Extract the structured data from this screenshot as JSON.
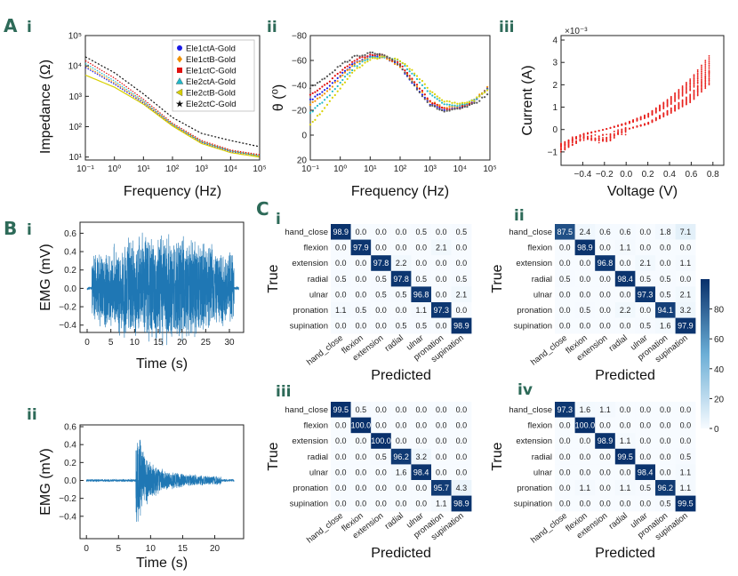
{
  "colors": {
    "panel_label": "#2d6a58",
    "emg_trace": "#1f77b4",
    "iv_trace": "#e8231f",
    "cmap_low": "#f7fbff",
    "cmap_high": "#08306b"
  },
  "panels": {
    "A": "A",
    "B": "B",
    "C": "C",
    "Ai": "i",
    "Aii": "ii",
    "Aiii": "iii",
    "Bi": "i",
    "Bii": "ii",
    "Ci": "i",
    "Cii": "ii",
    "Ciii": "iii",
    "Civ": "iv"
  },
  "chart_data": [
    {
      "id": "impedance",
      "type": "line",
      "xlabel": "Frequency (Hz)",
      "ylabel": "Impedance (Ω)",
      "xscale": "log",
      "yscale": "log",
      "xlim": [
        0.1,
        100000
      ],
      "ylim": [
        8,
        100000
      ],
      "xticks": [
        "10⁻¹",
        "10⁰",
        "10¹",
        "10²",
        "10³",
        "10⁴",
        "10⁵"
      ],
      "yticks": [
        "10¹",
        "10²",
        "10³",
        "10⁴",
        "10⁵"
      ],
      "legend": "top-right",
      "x": [
        0.1,
        1,
        10,
        100,
        1000,
        10000,
        100000
      ],
      "series": [
        {
          "name": "Ele1ctA-Gold",
          "color": "#1a1ae6",
          "marker": "circle",
          "values": [
            9000,
            2500,
            600,
            110,
            30,
            15,
            11
          ]
        },
        {
          "name": "Ele1ctB-Gold",
          "color": "#f09000",
          "marker": "diamond",
          "values": [
            10000,
            2800,
            650,
            115,
            32,
            16,
            11
          ]
        },
        {
          "name": "Ele1ctC-Gold",
          "color": "#e01010",
          "marker": "square",
          "values": [
            15000,
            4000,
            800,
            130,
            35,
            17,
            12
          ]
        },
        {
          "name": "Ele2ctA-Gold",
          "color": "#20b8c8",
          "marker": "triangle-up",
          "values": [
            12000,
            3200,
            700,
            120,
            32,
            16,
            11
          ]
        },
        {
          "name": "Ele2ctB-Gold",
          "color": "#d8d000",
          "marker": "triangle-left",
          "values": [
            5000,
            2000,
            550,
            105,
            28,
            14,
            10
          ]
        },
        {
          "name": "Ele2ctC-Gold",
          "color": "#111111",
          "marker": "star",
          "values": [
            20000,
            6000,
            1200,
            200,
            60,
            35,
            22
          ]
        }
      ]
    },
    {
      "id": "phase",
      "type": "line",
      "xlabel": "Frequency (Hz)",
      "ylabel": "θ (⁰)",
      "xscale": "log",
      "xlim": [
        0.1,
        100000
      ],
      "ylim": [
        20,
        -80
      ],
      "xticks": [
        "10⁻¹",
        "10⁰",
        "10¹",
        "10²",
        "10³",
        "10⁴",
        "10⁵"
      ],
      "yticks": [
        "−80",
        "−60",
        "−40",
        "−20",
        "0",
        "20"
      ],
      "x": [
        0.1,
        0.3,
        1,
        3,
        10,
        30,
        100,
        300,
        1000,
        3000,
        10000,
        30000,
        100000
      ],
      "series": [
        {
          "name": "Ele1ctA-Gold",
          "color": "#1a1ae6",
          "values": [
            -28,
            -36,
            -48,
            -58,
            -64,
            -63,
            -55,
            -40,
            -25,
            -20,
            -22,
            -27,
            -40
          ]
        },
        {
          "name": "Ele1ctB-Gold",
          "color": "#f09000",
          "values": [
            -25,
            -33,
            -46,
            -57,
            -63,
            -62,
            -55,
            -42,
            -27,
            -22,
            -23,
            -28,
            -40
          ]
        },
        {
          "name": "Ele1ctC-Gold",
          "color": "#e01010",
          "values": [
            -33,
            -40,
            -51,
            -60,
            -65,
            -64,
            -57,
            -43,
            -27,
            -21,
            -22,
            -27,
            -38
          ]
        },
        {
          "name": "Ele2ctA-Gold",
          "color": "#20b8c8",
          "values": [
            -18,
            -28,
            -42,
            -55,
            -62,
            -63,
            -59,
            -48,
            -33,
            -25,
            -24,
            -28,
            -39
          ]
        },
        {
          "name": "Ele2ctB-Gold",
          "color": "#d8d000",
          "values": [
            -8,
            -22,
            -38,
            -52,
            -61,
            -63,
            -60,
            -50,
            -36,
            -27,
            -25,
            -28,
            -38
          ]
        },
        {
          "name": "Ele2ctC-Gold",
          "color": "#555555",
          "values": [
            -38,
            -46,
            -56,
            -63,
            -66,
            -64,
            -56,
            -40,
            -24,
            -19,
            -21,
            -25,
            -34
          ]
        }
      ]
    },
    {
      "id": "iv",
      "type": "scatter",
      "xlabel": "Voltage (V)",
      "ylabel": "Current (A)",
      "multiplier": "×10⁻³",
      "xlim": [
        -0.6,
        0.9
      ],
      "ylim": [
        -1.6,
        4.2
      ],
      "xticks": [
        "−0.4",
        "−0.2",
        "0.0",
        "0.2",
        "0.4",
        "0.6",
        "0.8"
      ],
      "yticks": [
        "−1",
        "0",
        "1",
        "2",
        "3",
        "4"
      ],
      "sweeps": 10,
      "upper_branch": [
        [
          -0.6,
          -0.8
        ],
        [
          -0.4,
          -0.25
        ],
        [
          -0.2,
          0.0
        ],
        [
          0.0,
          0.3
        ],
        [
          0.2,
          0.7
        ],
        [
          0.4,
          1.4
        ],
        [
          0.6,
          2.3
        ],
        [
          0.8,
          3.5
        ]
      ],
      "lower_branch": [
        [
          -0.6,
          -1.0
        ],
        [
          -0.4,
          -0.4
        ],
        [
          -0.2,
          -0.5
        ],
        [
          0.0,
          0.0
        ],
        [
          0.2,
          0.3
        ],
        [
          0.4,
          0.9
        ],
        [
          0.6,
          1.6
        ],
        [
          0.8,
          2.8
        ]
      ]
    },
    {
      "id": "emg1",
      "type": "line",
      "xlabel": "Time (s)",
      "ylabel": "EMG (mV)",
      "xlim": [
        -1.5,
        33
      ],
      "ylim": [
        -0.48,
        0.72
      ],
      "xticks": [
        "0",
        "5",
        "10",
        "15",
        "20",
        "25",
        "30"
      ],
      "yticks": [
        "−0.4",
        "−0.2",
        "0.0",
        "0.2",
        "0.4",
        "0.6"
      ],
      "duration": 32,
      "active_start": 1,
      "active_end": 31,
      "peak_amplitude": 0.7
    },
    {
      "id": "emg2",
      "type": "line",
      "xlabel": "Time (s)",
      "ylabel": "EMG (mV)",
      "xlim": [
        -1,
        24.5
      ],
      "ylim": [
        -0.65,
        0.62
      ],
      "xticks": [
        "0",
        "5",
        "10",
        "15",
        "20"
      ],
      "yticks": [
        "−0.4",
        "−0.2",
        "0.0",
        "0.2",
        "0.4",
        "0.6"
      ],
      "duration": 23,
      "burst_start": 7.7,
      "burst_end": 21,
      "peak_amplitude": 0.56
    },
    {
      "id": "confusion",
      "type": "heatmap",
      "xlabel": "Predicted",
      "ylabel": "True",
      "classes": [
        "hand_close",
        "flexion",
        "extension",
        "radial",
        "ulnar",
        "pronation",
        "supination"
      ],
      "colorbar": {
        "min": 0,
        "max": 100,
        "ticks": [
          "0",
          "20",
          "40",
          "60",
          "80"
        ]
      },
      "matrices": [
        [
          [
            98.9,
            0.0,
            0.0,
            0.0,
            0.5,
            0.0,
            0.5
          ],
          [
            0.0,
            97.9,
            0.0,
            0.0,
            0.0,
            2.1,
            0.0
          ],
          [
            0.0,
            0.0,
            97.8,
            2.2,
            0.0,
            0.0,
            0.0
          ],
          [
            0.5,
            0.0,
            0.5,
            97.8,
            0.5,
            0.0,
            0.5
          ],
          [
            0.0,
            0.0,
            0.5,
            0.5,
            96.8,
            0.0,
            2.1
          ],
          [
            1.1,
            0.5,
            0.0,
            0.0,
            1.1,
            97.3,
            0.0
          ],
          [
            0.0,
            0.0,
            0.0,
            0.5,
            0.5,
            0.0,
            98.9
          ]
        ],
        [
          [
            87.5,
            2.4,
            0.6,
            0.6,
            0.0,
            1.8,
            7.1
          ],
          [
            0.0,
            98.9,
            0.0,
            1.1,
            0.0,
            0.0,
            0.0
          ],
          [
            0.0,
            0.0,
            96.8,
            0.0,
            2.1,
            0.0,
            1.1
          ],
          [
            0.5,
            0.0,
            0.0,
            98.4,
            0.5,
            0.5,
            0.0
          ],
          [
            0.0,
            0.0,
            0.0,
            0.0,
            97.3,
            0.5,
            2.1
          ],
          [
            0.0,
            0.5,
            0.0,
            2.2,
            0.0,
            94.1,
            3.2
          ],
          [
            0.0,
            0.0,
            0.0,
            0.0,
            0.5,
            1.6,
            97.9
          ]
        ],
        [
          [
            99.5,
            0.5,
            0.0,
            0.0,
            0.0,
            0.0,
            0.0
          ],
          [
            0.0,
            100.0,
            0.0,
            0.0,
            0.0,
            0.0,
            0.0
          ],
          [
            0.0,
            0.0,
            100.0,
            0.0,
            0.0,
            0.0,
            0.0
          ],
          [
            0.0,
            0.0,
            0.5,
            96.2,
            3.2,
            0.0,
            0.0
          ],
          [
            0.0,
            0.0,
            0.0,
            1.6,
            98.4,
            0.0,
            0.0
          ],
          [
            0.0,
            0.0,
            0.0,
            0.0,
            0.0,
            95.7,
            4.3
          ],
          [
            0.0,
            0.0,
            0.0,
            0.0,
            0.0,
            1.1,
            98.9
          ]
        ],
        [
          [
            97.3,
            1.6,
            1.1,
            0.0,
            0.0,
            0.0,
            0.0
          ],
          [
            0.0,
            100.0,
            0.0,
            0.0,
            0.0,
            0.0,
            0.0
          ],
          [
            0.0,
            0.0,
            98.9,
            1.1,
            0.0,
            0.0,
            0.0
          ],
          [
            0.0,
            0.0,
            0.0,
            99.5,
            0.0,
            0.0,
            0.5
          ],
          [
            0.0,
            0.0,
            0.0,
            0.0,
            98.4,
            0.0,
            1.1
          ],
          [
            0.0,
            1.1,
            0.0,
            1.1,
            0.5,
            96.2,
            1.1
          ],
          [
            0.0,
            0.0,
            0.0,
            0.0,
            0.0,
            0.5,
            99.5
          ]
        ]
      ]
    }
  ]
}
